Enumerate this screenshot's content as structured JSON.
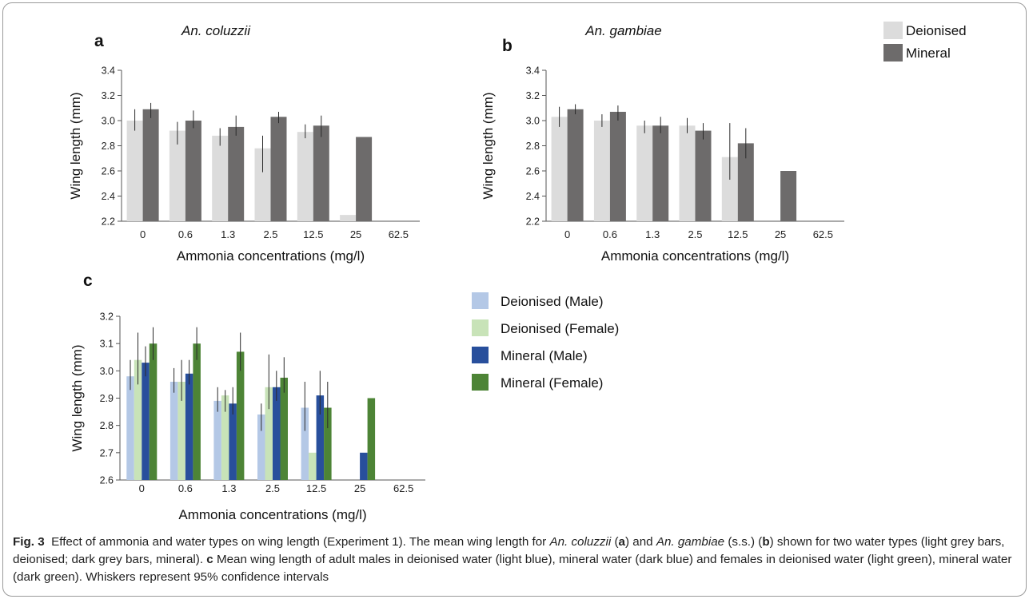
{
  "colors": {
    "deionised": "#dcdcdc",
    "mineral": "#6d6b6b",
    "deionised_male": "#b4c8e6",
    "deionised_female": "#c8e3b8",
    "mineral_male": "#284f9c",
    "mineral_female": "#4d8436"
  },
  "legend_top": [
    "Deionised",
    "Mineral"
  ],
  "chart_data": [
    {
      "panel": "a",
      "type": "bar",
      "title": "An. coluzzii",
      "xlabel": "Ammonia concentrations (mg/l)",
      "ylabel": "Wing length (mm)",
      "categories": [
        "0",
        "0.6",
        "1.3",
        "2.5",
        "12.5",
        "25",
        "62.5"
      ],
      "ylim": [
        2.2,
        3.4
      ],
      "yticks": [
        "2.2",
        "2.4",
        "2.6",
        "2.8",
        "3.0",
        "3.2",
        "3.4"
      ],
      "series": [
        {
          "name": "Deionised",
          "values": [
            3.0,
            2.92,
            2.88,
            2.78,
            2.91,
            2.25,
            null
          ],
          "ci_low": [
            2.92,
            2.81,
            2.8,
            2.59,
            2.86,
            null,
            null
          ],
          "ci_high": [
            3.09,
            2.99,
            2.94,
            2.88,
            2.97,
            null,
            null
          ]
        },
        {
          "name": "Mineral",
          "values": [
            3.09,
            3.0,
            2.95,
            3.03,
            2.96,
            2.87,
            null
          ],
          "ci_low": [
            3.02,
            2.94,
            2.88,
            2.98,
            2.87,
            null,
            null
          ],
          "ci_high": [
            3.14,
            3.08,
            3.04,
            3.07,
            3.04,
            null,
            null
          ]
        }
      ]
    },
    {
      "panel": "b",
      "type": "bar",
      "title": "An. gambiae",
      "xlabel": "Ammonia concentrations (mg/l)",
      "ylabel": "Wing length (mm)",
      "categories": [
        "0",
        "0.6",
        "1.3",
        "2.5",
        "12.5",
        "25",
        "62.5"
      ],
      "ylim": [
        2.2,
        3.4
      ],
      "yticks": [
        "2.2",
        "2.4",
        "2.6",
        "2.8",
        "3.0",
        "3.2",
        "3.4"
      ],
      "series": [
        {
          "name": "Deionised",
          "values": [
            3.03,
            3.0,
            2.96,
            2.96,
            2.71,
            null,
            null
          ],
          "ci_low": [
            2.95,
            2.95,
            2.9,
            2.9,
            2.53,
            null,
            null
          ],
          "ci_high": [
            3.11,
            3.05,
            3.0,
            3.02,
            2.98,
            null,
            null
          ]
        },
        {
          "name": "Mineral",
          "values": [
            3.09,
            3.07,
            2.96,
            2.92,
            2.82,
            2.6,
            null
          ],
          "ci_low": [
            3.05,
            3.0,
            2.9,
            2.85,
            2.7,
            null,
            null
          ],
          "ci_high": [
            3.13,
            3.12,
            3.03,
            2.98,
            2.94,
            null,
            null
          ]
        }
      ]
    },
    {
      "panel": "c",
      "type": "bar",
      "title": "",
      "xlabel": "Ammonia concentrations (mg/l)",
      "ylabel": "Wing length (mm)",
      "categories": [
        "0",
        "0.6",
        "1.3",
        "2.5",
        "12.5",
        "25",
        "62.5"
      ],
      "ylim": [
        2.6,
        3.2
      ],
      "yticks": [
        "2.6",
        "2.7",
        "2.8",
        "2.9",
        "3.0",
        "3.1",
        "3.2"
      ],
      "series": [
        {
          "name": "Deionised (Male)",
          "values": [
            2.98,
            2.96,
            2.89,
            2.84,
            2.865,
            null,
            null
          ],
          "ci_low": [
            2.93,
            2.92,
            2.85,
            2.78,
            2.78,
            null,
            null
          ],
          "ci_high": [
            3.04,
            3.01,
            2.94,
            2.88,
            2.96,
            null,
            null
          ]
        },
        {
          "name": "Deionised (Female)",
          "values": [
            3.04,
            2.96,
            2.91,
            2.94,
            2.7,
            null,
            null
          ],
          "ci_low": [
            2.95,
            2.89,
            2.85,
            2.86,
            null,
            null,
            null
          ],
          "ci_high": [
            3.14,
            3.04,
            2.93,
            3.06,
            null,
            null,
            null
          ]
        },
        {
          "name": "Mineral (Male)",
          "values": [
            3.03,
            2.99,
            2.88,
            2.94,
            2.91,
            2.7,
            null
          ],
          "ci_low": [
            2.98,
            2.95,
            2.84,
            2.89,
            2.84,
            null,
            null
          ],
          "ci_high": [
            3.09,
            3.04,
            2.94,
            3.0,
            3.0,
            null,
            null
          ]
        },
        {
          "name": "Mineral (Female)",
          "values": [
            3.1,
            3.1,
            3.07,
            2.975,
            2.865,
            2.9,
            null
          ],
          "ci_low": [
            3.04,
            3.04,
            3.0,
            2.92,
            2.79,
            null,
            null
          ],
          "ci_high": [
            3.16,
            3.16,
            3.14,
            3.05,
            2.96,
            null,
            null
          ]
        }
      ]
    }
  ],
  "caption": {
    "fig_label": "Fig. 3",
    "part1": "Effect of ammonia and water types on wing length (Experiment 1). The mean wing length for ",
    "species1": "An. coluzzii",
    "paren1_open": " (",
    "panel_a": "a",
    "part2": ") and ",
    "species2": "An. gambiae",
    "part3": " (s.s.) (",
    "panel_b": "b",
    "part4": ") shown for two water types (light grey bars, deionised; dark grey bars, mineral). ",
    "panel_c": "c",
    "part5": " Mean wing length of adult males in deionised water (light blue), mineral water (dark blue) and females in deionised water (light green), mineral water (dark green). Whiskers represent 95% confidence intervals"
  }
}
